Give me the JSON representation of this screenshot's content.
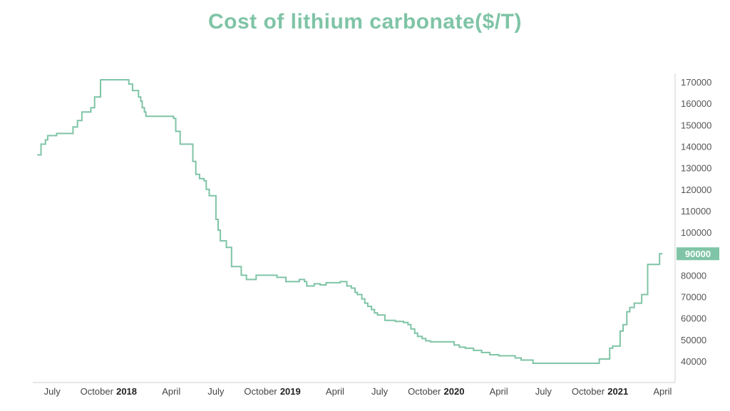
{
  "chart_data": {
    "type": "line",
    "title": "Cost of lithium carbonate($/T)",
    "xlabel": "",
    "ylabel": "",
    "ylim": [
      30000,
      174000
    ],
    "y_ticks": [
      "170000",
      "160000",
      "150000",
      "140000",
      "130000",
      "120000",
      "110000",
      "100000",
      "90000",
      "80000",
      "70000",
      "60000",
      "50000",
      "40000"
    ],
    "x_ticks": [
      {
        "label": "July",
        "idx": 1,
        "year": false
      },
      {
        "label": "October",
        "idx": 4,
        "year": false
      },
      {
        "label": "2018",
        "idx": 6,
        "year": true
      },
      {
        "label": "April",
        "idx": 9,
        "year": false
      },
      {
        "label": "July",
        "idx": 12,
        "year": false
      },
      {
        "label": "October",
        "idx": 15,
        "year": false
      },
      {
        "label": "2019",
        "idx": 17,
        "year": true
      },
      {
        "label": "April",
        "idx": 20,
        "year": false
      },
      {
        "label": "July",
        "idx": 23,
        "year": false
      },
      {
        "label": "October",
        "idx": 26,
        "year": false
      },
      {
        "label": "2020",
        "idx": 28,
        "year": true
      },
      {
        "label": "April",
        "idx": 31,
        "year": false
      },
      {
        "label": "July",
        "idx": 34,
        "year": false
      },
      {
        "label": "October",
        "idx": 37,
        "year": false
      },
      {
        "label": "2021",
        "idx": 39,
        "year": true
      },
      {
        "label": "April",
        "idx": 42,
        "year": false
      }
    ],
    "x_index_range": [
      -0.3,
      42.7
    ],
    "highlight": {
      "label": "90000",
      "value": 90000,
      "color": "#7fc4a6"
    },
    "line_color": "#7fc4a6",
    "series": [
      {
        "name": "Cost of lithium carbonate",
        "points": [
          [
            0.0,
            136000
          ],
          [
            0.25,
            136000
          ],
          [
            0.25,
            141000
          ],
          [
            0.55,
            141000
          ],
          [
            0.55,
            143000
          ],
          [
            0.7,
            143000
          ],
          [
            0.7,
            145000
          ],
          [
            1.3,
            145000
          ],
          [
            1.3,
            146000
          ],
          [
            2.4,
            146000
          ],
          [
            2.4,
            149000
          ],
          [
            2.7,
            149000
          ],
          [
            2.7,
            152000
          ],
          [
            3.0,
            152000
          ],
          [
            3.0,
            156000
          ],
          [
            3.6,
            156000
          ],
          [
            3.6,
            158000
          ],
          [
            3.85,
            158000
          ],
          [
            3.85,
            163000
          ],
          [
            4.25,
            163000
          ],
          [
            4.25,
            171000
          ],
          [
            6.15,
            171000
          ],
          [
            6.15,
            169000
          ],
          [
            6.4,
            169000
          ],
          [
            6.4,
            166000
          ],
          [
            6.8,
            166000
          ],
          [
            6.8,
            163000
          ],
          [
            6.95,
            163000
          ],
          [
            6.95,
            161000
          ],
          [
            7.05,
            161000
          ],
          [
            7.05,
            158000
          ],
          [
            7.2,
            158000
          ],
          [
            7.2,
            156000
          ],
          [
            7.3,
            156000
          ],
          [
            7.3,
            154000
          ],
          [
            9.15,
            154000
          ],
          [
            9.15,
            153000
          ],
          [
            9.3,
            153000
          ],
          [
            9.3,
            147000
          ],
          [
            9.6,
            147000
          ],
          [
            9.6,
            141000
          ],
          [
            10.45,
            141000
          ],
          [
            10.45,
            133000
          ],
          [
            10.65,
            133000
          ],
          [
            10.65,
            127000
          ],
          [
            10.9,
            127000
          ],
          [
            10.9,
            125000
          ],
          [
            11.2,
            125000
          ],
          [
            11.2,
            124000
          ],
          [
            11.35,
            124000
          ],
          [
            11.35,
            120000
          ],
          [
            11.55,
            120000
          ],
          [
            11.55,
            117000
          ],
          [
            12.0,
            117000
          ],
          [
            12.0,
            106000
          ],
          [
            12.15,
            106000
          ],
          [
            12.15,
            101000
          ],
          [
            12.3,
            101000
          ],
          [
            12.3,
            96000
          ],
          [
            12.7,
            96000
          ],
          [
            12.7,
            93000
          ],
          [
            13.05,
            93000
          ],
          [
            13.05,
            84000
          ],
          [
            13.7,
            84000
          ],
          [
            13.7,
            80000
          ],
          [
            14.05,
            80000
          ],
          [
            14.05,
            78000
          ],
          [
            14.7,
            78000
          ],
          [
            14.7,
            80000
          ],
          [
            16.1,
            80000
          ],
          [
            16.1,
            79000
          ],
          [
            16.7,
            79000
          ],
          [
            16.7,
            77000
          ],
          [
            17.6,
            77000
          ],
          [
            17.6,
            78000
          ],
          [
            17.95,
            78000
          ],
          [
            17.95,
            77000
          ],
          [
            18.1,
            77000
          ],
          [
            18.1,
            75000
          ],
          [
            18.6,
            75000
          ],
          [
            18.6,
            76000
          ],
          [
            19.0,
            76000
          ],
          [
            19.0,
            75500
          ],
          [
            19.4,
            75500
          ],
          [
            19.4,
            76500
          ],
          [
            20.35,
            76500
          ],
          [
            20.35,
            77000
          ],
          [
            20.8,
            77000
          ],
          [
            20.8,
            75000
          ],
          [
            21.1,
            75000
          ],
          [
            21.1,
            74000
          ],
          [
            21.35,
            74000
          ],
          [
            21.35,
            72000
          ],
          [
            21.5,
            72000
          ],
          [
            21.5,
            71000
          ],
          [
            21.8,
            71000
          ],
          [
            21.8,
            69000
          ],
          [
            22.0,
            69000
          ],
          [
            22.0,
            67000
          ],
          [
            22.2,
            67000
          ],
          [
            22.2,
            65500
          ],
          [
            22.45,
            65500
          ],
          [
            22.45,
            64000
          ],
          [
            22.65,
            64000
          ],
          [
            22.65,
            62500
          ],
          [
            22.85,
            62500
          ],
          [
            22.85,
            61500
          ],
          [
            23.35,
            61500
          ],
          [
            23.35,
            59000
          ],
          [
            24.05,
            59000
          ],
          [
            24.05,
            58500
          ],
          [
            24.6,
            58500
          ],
          [
            24.6,
            58000
          ],
          [
            24.9,
            58000
          ],
          [
            24.9,
            57000
          ],
          [
            25.1,
            57000
          ],
          [
            25.1,
            55000
          ],
          [
            25.35,
            55000
          ],
          [
            25.35,
            53000
          ],
          [
            25.55,
            53000
          ],
          [
            25.55,
            51500
          ],
          [
            25.85,
            51500
          ],
          [
            25.85,
            50500
          ],
          [
            26.1,
            50500
          ],
          [
            26.1,
            49500
          ],
          [
            26.4,
            49500
          ],
          [
            26.4,
            49000
          ],
          [
            28.0,
            49000
          ],
          [
            28.0,
            47500
          ],
          [
            28.35,
            47500
          ],
          [
            28.35,
            46500
          ],
          [
            28.75,
            46500
          ],
          [
            28.75,
            46000
          ],
          [
            29.3,
            46000
          ],
          [
            29.3,
            45000
          ],
          [
            29.85,
            45000
          ],
          [
            29.85,
            44000
          ],
          [
            30.4,
            44000
          ],
          [
            30.4,
            43000
          ],
          [
            31.0,
            43000
          ],
          [
            31.0,
            42500
          ],
          [
            32.1,
            42500
          ],
          [
            32.1,
            41500
          ],
          [
            32.5,
            41500
          ],
          [
            32.5,
            40500
          ],
          [
            33.3,
            40500
          ],
          [
            33.3,
            39000
          ],
          [
            37.75,
            39000
          ],
          [
            37.75,
            41000
          ],
          [
            38.45,
            41000
          ],
          [
            38.45,
            46000
          ],
          [
            38.65,
            46000
          ],
          [
            38.65,
            47000
          ],
          [
            39.15,
            47000
          ],
          [
            39.15,
            54000
          ],
          [
            39.35,
            54000
          ],
          [
            39.35,
            57000
          ],
          [
            39.6,
            57000
          ],
          [
            39.6,
            63000
          ],
          [
            39.8,
            63000
          ],
          [
            39.8,
            65000
          ],
          [
            40.1,
            65000
          ],
          [
            40.1,
            67000
          ],
          [
            40.6,
            67000
          ],
          [
            40.6,
            71000
          ],
          [
            41.0,
            71000
          ],
          [
            41.0,
            85000
          ],
          [
            41.8,
            85000
          ],
          [
            41.8,
            90000
          ],
          [
            42.0,
            90000
          ]
        ]
      }
    ]
  }
}
